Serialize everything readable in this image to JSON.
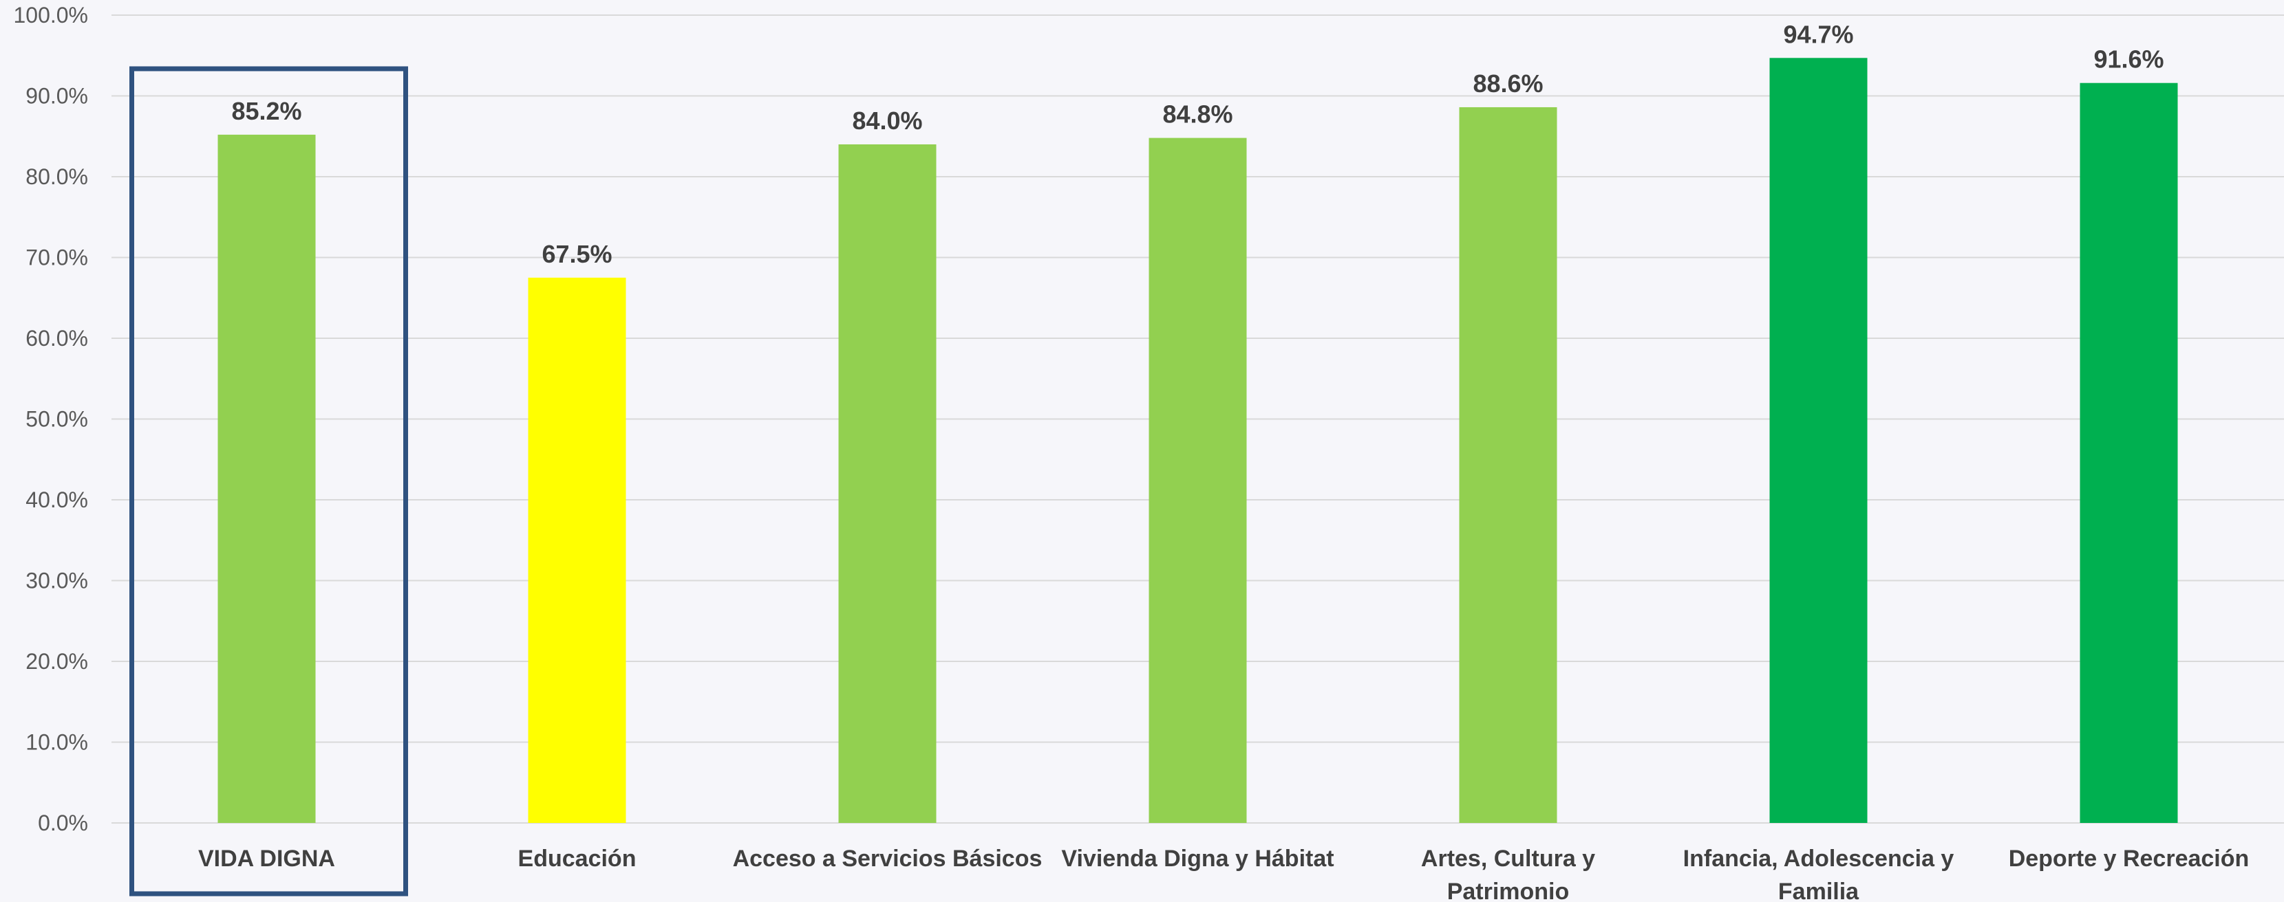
{
  "chart_data": {
    "type": "bar",
    "categories": [
      "VIDA DIGNA",
      "Educación",
      "Acceso a Servicios Básicos",
      "Vivienda Digna y Hábitat",
      "Artes, Cultura y Patrimonio",
      "Infancia, Adolescencia y Familia",
      "Deporte y Recreación"
    ],
    "category_lines": [
      [
        "VIDA DIGNA"
      ],
      [
        "Educación"
      ],
      [
        "Acceso a Servicios Básicos"
      ],
      [
        "Vivienda Digna y Hábitat"
      ],
      [
        "Artes, Cultura y",
        "Patrimonio"
      ],
      [
        "Infancia, Adolescencia y",
        "Familia"
      ],
      [
        "Deporte y Recreación"
      ]
    ],
    "values": [
      85.2,
      67.5,
      84.0,
      84.8,
      88.6,
      94.7,
      91.6
    ],
    "value_labels": [
      "85.2%",
      "67.5%",
      "84.0%",
      "84.8%",
      "88.6%",
      "94.7%",
      "91.6%"
    ],
    "bar_colors": [
      "#92d050",
      "#ffff00",
      "#92d050",
      "#92d050",
      "#92d050",
      "#00b050",
      "#00b050"
    ],
    "ylim": [
      0,
      100
    ],
    "yticks": [
      0,
      10,
      20,
      30,
      40,
      50,
      60,
      70,
      80,
      90,
      100
    ],
    "ytick_labels": [
      "0.0%",
      "10.0%",
      "20.0%",
      "30.0%",
      "40.0%",
      "50.0%",
      "60.0%",
      "70.0%",
      "80.0%",
      "90.0%",
      "100.0%"
    ],
    "grid": true,
    "highlighted_category": "VIDA DIGNA",
    "highlight_color": "#2f5280",
    "title": "",
    "xlabel": "",
    "ylabel": ""
  }
}
